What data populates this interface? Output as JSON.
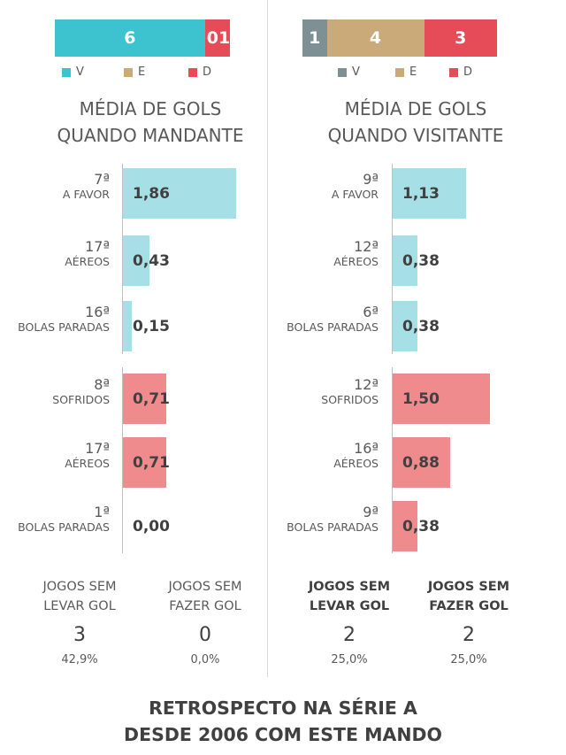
{
  "colors": {
    "v_home": "#3cc3cf",
    "v_away": "#7f9095",
    "e": "#c9aa78",
    "d": "#e64c57",
    "favor": "#a6dfe6",
    "sofridos": "#ef8b8d"
  },
  "legend": {
    "v": "V",
    "e": "E",
    "d": "D"
  },
  "footer": {
    "line1": "RETROSPECTO NA SÉRIE A",
    "line2": "DESDE 2006 COM ESTE MANDO"
  },
  "chart_data": [
    {
      "type": "bar",
      "title": "MÉDIA DE GOLS QUANDO MANDANTE",
      "title_lines": [
        "MÉDIA DE GOLS",
        "QUANDO MANDANTE"
      ],
      "results": {
        "V": 6,
        "E": 0,
        "D": 1,
        "labels": [
          "6",
          "0",
          "1"
        ]
      },
      "categories": [
        "A FAVOR",
        "AÉREOS",
        "BOLAS PARADAS",
        "SOFRIDOS",
        "AÉREOS",
        "BOLAS PARADAS"
      ],
      "ranks": [
        "7ª",
        "17ª",
        "16ª",
        "8ª",
        "17ª",
        "1ª"
      ],
      "values": [
        1.86,
        0.43,
        0.15,
        0.71,
        0.71,
        0.0
      ],
      "value_labels": [
        "1,86",
        "0,43",
        "0,15",
        "0,71",
        "0,71",
        "0,00"
      ],
      "groups": [
        "favor",
        "favor",
        "favor",
        "sofridos",
        "sofridos",
        "sofridos"
      ],
      "ylim": [
        0,
        1.86
      ],
      "stats": [
        {
          "label_1": "JOGOS SEM",
          "label_2": "LEVAR GOL",
          "value": "3",
          "pct": "42,9%"
        },
        {
          "label_1": "JOGOS SEM",
          "label_2": "FAZER GOL",
          "value": "0",
          "pct": "0,0%"
        }
      ]
    },
    {
      "type": "bar",
      "title": "MÉDIA DE GOLS QUANDO VISITANTE",
      "title_lines": [
        "MÉDIA DE GOLS",
        "QUANDO VISITANTE"
      ],
      "results": {
        "V": 1,
        "E": 4,
        "D": 3,
        "labels": [
          "1",
          "4",
          "3"
        ]
      },
      "categories": [
        "A FAVOR",
        "AÉREOS",
        "BOLAS PARADAS",
        "SOFRIDOS",
        "AÉREOS",
        "BOLAS PARADAS"
      ],
      "ranks": [
        "9ª",
        "12ª",
        "6ª",
        "12ª",
        "16ª",
        "9ª"
      ],
      "values": [
        1.13,
        0.38,
        0.38,
        1.5,
        0.88,
        0.38
      ],
      "value_labels": [
        "1,13",
        "0,38",
        "0,38",
        "1,50",
        "0,88",
        "0,38"
      ],
      "groups": [
        "favor",
        "favor",
        "favor",
        "sofridos",
        "sofridos",
        "sofridos"
      ],
      "ylim": [
        0,
        1.5
      ],
      "stats": [
        {
          "label_1": "JOGOS SEM",
          "label_2": "LEVAR GOL",
          "value": "2",
          "pct": "25,0%"
        },
        {
          "label_1": "JOGOS SEM",
          "label_2": "FAZER GOL",
          "value": "2",
          "pct": "25,0%"
        }
      ]
    }
  ]
}
